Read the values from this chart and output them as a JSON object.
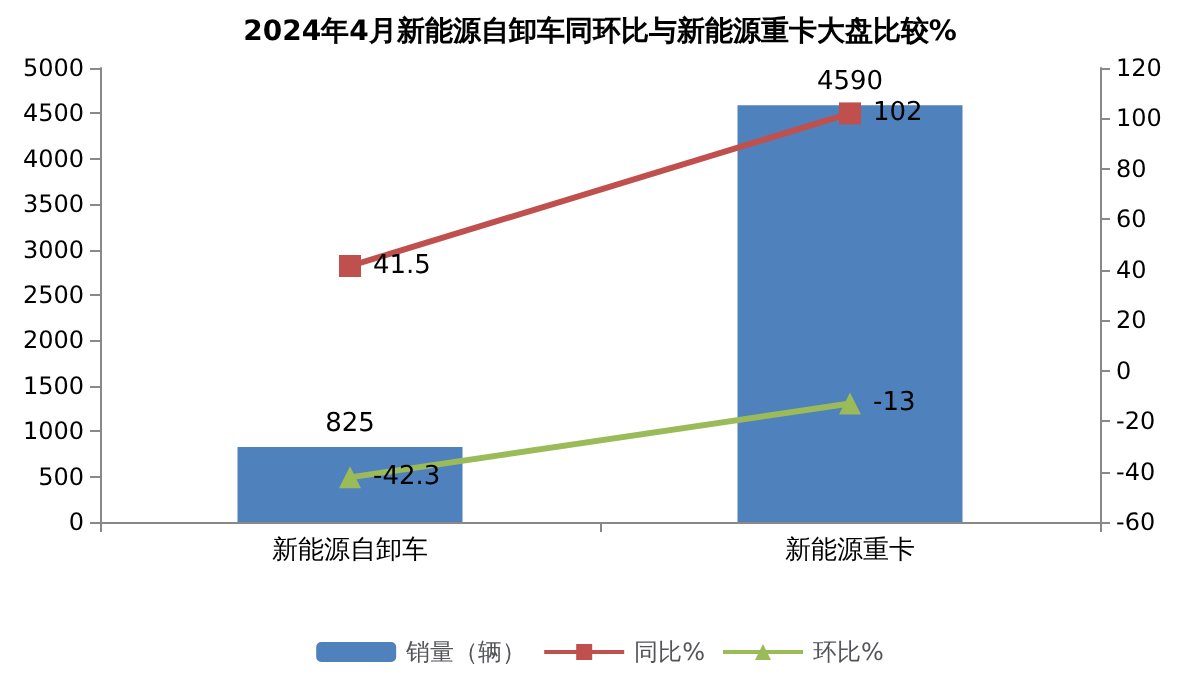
{
  "chart_data": {
    "type": "bar",
    "title": "2024年4月新能源自卸车同环比与新能源重卡大盘比较%",
    "categories": [
      "新能源自卸车",
      "新能源重卡"
    ],
    "series": [
      {
        "name": "销量（辆）",
        "color": "#4f81bd",
        "values": [
          825,
          4590
        ]
      },
      {
        "name": "同比%",
        "type": "line",
        "axis": "y2",
        "color": "#c0504d",
        "marker": "square",
        "values": [
          41.5,
          102
        ]
      },
      {
        "name": "环比%",
        "type": "line",
        "axis": "y2",
        "color": "#9bbb59",
        "marker": "triangle",
        "values": [
          -42.3,
          -13
        ]
      }
    ],
    "ylim": [
      0,
      5000
    ],
    "yticks": [
      0,
      500,
      1000,
      1500,
      2000,
      2500,
      3000,
      3500,
      4000,
      4500,
      5000
    ],
    "y2lim": [
      -60,
      120
    ],
    "y2ticks": [
      -60,
      -40,
      -20,
      0,
      20,
      40,
      60,
      80,
      100,
      120
    ],
    "data_labels": true,
    "legend": "bottom",
    "grid": false
  }
}
